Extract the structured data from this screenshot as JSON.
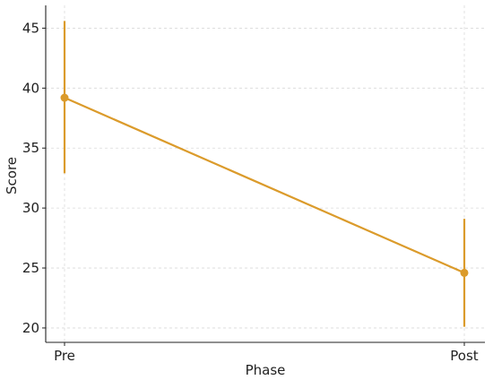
{
  "chart_data": {
    "type": "line",
    "title": "",
    "xlabel": "Phase",
    "ylabel": "Score",
    "categories": [
      "Pre",
      "Post"
    ],
    "ylim": [
      18.8,
      46.9
    ],
    "yticks": [
      20,
      25,
      30,
      35,
      40,
      45
    ],
    "grid": true,
    "legend": "none",
    "series": [
      {
        "values": [
          39.2,
          24.6
        ],
        "error_low": [
          32.9,
          20.1
        ],
        "error_high": [
          45.6,
          29.1
        ],
        "color": "#DB9B2B"
      }
    ]
  }
}
